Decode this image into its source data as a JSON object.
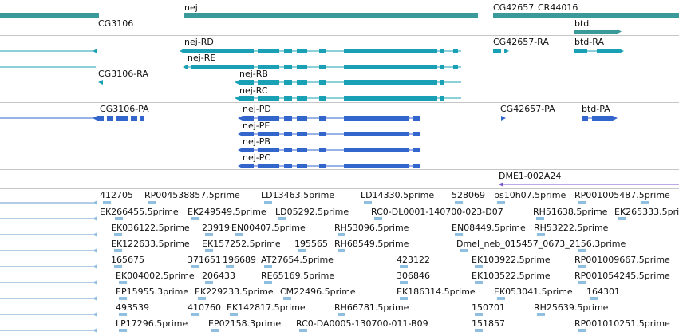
{
  "colors": {
    "gene": "#3a9a9a",
    "transcript": "#19a0b4",
    "protein": "#3366cc",
    "primer": "#6699cc",
    "est": "#8fbfe0",
    "separator": "#c6c6c6"
  },
  "gene_track": {
    "labels": [
      "nej",
      "CG3106",
      "CG42657",
      "CR44016",
      "btd"
    ]
  },
  "transcript_track": {
    "labels": [
      "nej-RD",
      "nej-RE",
      "nej-RB",
      "nej-RC",
      "CG3106-RA",
      "CG42657-RA",
      "btd-RA"
    ]
  },
  "protein_track": {
    "labels": [
      "nej-PD",
      "nej-PE",
      "nej-PB",
      "nej-PC",
      "CG3106-PA",
      "CG42657-PA",
      "btd-PA"
    ]
  },
  "primer_track": {
    "labels": [
      "DME1-002A24"
    ]
  },
  "est_track": {
    "labels": [
      "412705",
      "RP004538857.5prime",
      "LD13463.5prime",
      "LD14330.5prime",
      "528069",
      "bs10h07.5prime",
      "RP001005487.5prime",
      "EK266455.5prime",
      "EK249549.5prime",
      "LD05292.5prime",
      "RC0-DL0001-140700-023-D07",
      "RH51638.5prime",
      "EK265333.5prime",
      "EK036122.5prime",
      "23919",
      "EN00407.5prime",
      "RH53096.5prime",
      "EN08449.5prime",
      "RH53222.5prime",
      "EK122633.5prime",
      "EK157252.5prime",
      "195565",
      "RH68549.5prime",
      "Dmel_neb_015457_0673_2156.3prime",
      "165675",
      "371651",
      "196689",
      "AT27654.5prime",
      "423122",
      "EK103922.5prime",
      "RP001009667.5prime",
      "EK004002.5prime",
      "206433",
      "RE65169.5prime",
      "306846",
      "EK103522.5prime",
      "RP001054245.5prime",
      "EP15955.3prime",
      "EK229233.5prime",
      "CM22496.5prime",
      "EK186314.5prime",
      "EK053041.5prime",
      "164301",
      "493539",
      "410760",
      "EK142817.5prime",
      "RH66781.5prime",
      "150701",
      "RH25639.5prime",
      "LP17296.5prime",
      "EP02158.3prime",
      "RC0-DA0005-130700-011-B09",
      "151857",
      "RP001010251.5prime"
    ]
  }
}
